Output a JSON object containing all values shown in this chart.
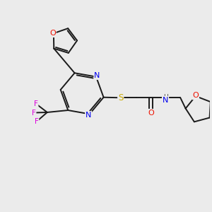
{
  "background_color": "#ebebeb",
  "atom_colors": {
    "C": "#1a1a1a",
    "N": "#0000ee",
    "O": "#ee1100",
    "S": "#ccaa00",
    "F": "#dd00dd",
    "H": "#444444"
  },
  "figsize": [
    3.0,
    3.0
  ],
  "dpi": 100
}
